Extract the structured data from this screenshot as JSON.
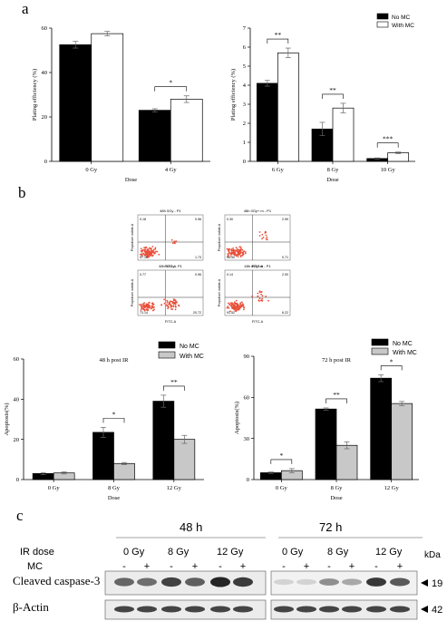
{
  "panel_labels": {
    "a": "a",
    "b": "b",
    "c": "c"
  },
  "legend": {
    "no_mc": "No MC",
    "with_mc": "With MC"
  },
  "colors": {
    "no_mc": "#000000",
    "with_mc_a": "#ffffff",
    "with_mc_b": "#c8c8c8",
    "flow_dots": "#e8503a",
    "blot_band": "#1a1a1a"
  },
  "chart_data": [
    {
      "id": "a1",
      "type": "bar",
      "ylabel": "Plating efficiency (%)",
      "xlabel": "Dose",
      "categories": [
        "0 Gy",
        "4 Gy"
      ],
      "ylim": [
        0,
        60
      ],
      "yticks": [
        0,
        20,
        40,
        60
      ],
      "series": [
        {
          "name": "No MC",
          "values": [
            52.5,
            23.0
          ],
          "errors": [
            1.5,
            0.7
          ]
        },
        {
          "name": "With MC",
          "values": [
            57.5,
            28.0
          ],
          "errors": [
            1.0,
            1.5
          ]
        }
      ],
      "significance": [
        {
          "category": 1,
          "text": "*"
        }
      ]
    },
    {
      "id": "a2",
      "type": "bar",
      "ylabel": "Plating efficiency (%)",
      "xlabel": "Dose",
      "categories": [
        "6 Gy",
        "8 Gy",
        "10 Gy"
      ],
      "ylim": [
        0,
        7
      ],
      "yticks": [
        0,
        1,
        2,
        3,
        4,
        5,
        6,
        7
      ],
      "series": [
        {
          "name": "No MC",
          "values": [
            4.1,
            1.7,
            0.15
          ],
          "errors": [
            0.15,
            0.35,
            0.03
          ]
        },
        {
          "name": "With MC",
          "values": [
            5.7,
            2.8,
            0.45
          ],
          "errors": [
            0.25,
            0.25,
            0.04
          ]
        }
      ],
      "significance": [
        {
          "category": 0,
          "text": "**"
        },
        {
          "category": 1,
          "text": "**"
        },
        {
          "category": 2,
          "text": "***"
        }
      ]
    },
    {
      "id": "b1",
      "type": "bar",
      "title": "48 h post IR",
      "ylabel": "Apoptosis(%)",
      "xlabel": "Dose",
      "categories": [
        "0 Gy",
        "8 Gy",
        "12 Gy"
      ],
      "ylim": [
        0,
        60
      ],
      "yticks": [
        0,
        20,
        40,
        60
      ],
      "series": [
        {
          "name": "No MC",
          "values": [
            3.0,
            23.5,
            39.0
          ],
          "errors": [
            0.5,
            2.5,
            3.0
          ]
        },
        {
          "name": "With MC",
          "values": [
            3.3,
            8.0,
            20.0
          ],
          "errors": [
            0.5,
            0.5,
            2.0
          ]
        }
      ],
      "significance": [
        {
          "category": 1,
          "text": "*"
        },
        {
          "category": 2,
          "text": "**"
        }
      ]
    },
    {
      "id": "b2",
      "type": "bar",
      "title": "72 h post IR",
      "ylabel": "Apoptosis(%)",
      "xlabel": "Dose",
      "categories": [
        "0 Gy",
        "8 Gy",
        "12 Gy"
      ],
      "ylim": [
        0,
        90
      ],
      "yticks": [
        0,
        30,
        60,
        90
      ],
      "series": [
        {
          "name": "No MC",
          "values": [
            5.0,
            51.5,
            74.0
          ],
          "errors": [
            0.5,
            0.8,
            2.5
          ]
        },
        {
          "name": "With MC",
          "values": [
            6.5,
            25.0,
            55.5
          ],
          "errors": [
            1.5,
            2.5,
            1.5
          ]
        }
      ],
      "significance": [
        {
          "category": 0,
          "text": "*"
        },
        {
          "category": 1,
          "text": "**"
        },
        {
          "category": 2,
          "text": "*"
        }
      ]
    }
  ],
  "flow_plots": [
    {
      "title": "48h 0Gy - P1",
      "ylabel": "Propidium iodide-A",
      "xlabel": "FITC-A",
      "q": [
        "0.18",
        "0.96",
        "97.15",
        "1.73"
      ]
    },
    {
      "title": "48h 0Gy+ m - P1",
      "ylabel": "Propidium iodide-A",
      "xlabel": "FITC-A",
      "q": [
        "0.30",
        "2.59",
        "96.40",
        "0.71"
      ]
    },
    {
      "title": "48h 12Gy - P1",
      "ylabel": "Propidium iodide-A",
      "xlabel": "FITC-A",
      "q": [
        "0.77",
        "0.96",
        "73.14",
        "20.72"
      ]
    },
    {
      "title": "48h 8Gy+m - P1",
      "ylabel": "Propidium iodide-A",
      "xlabel": "FITC-A",
      "q": [
        "0.14",
        "2.00",
        "91.52",
        "6.22"
      ]
    }
  ],
  "blot": {
    "time_48": "48 h",
    "time_72": "72 h",
    "ir_dose_label": "IR dose",
    "mc_label": "MC",
    "doses": [
      "0 Gy",
      "8 Gy",
      "12 Gy"
    ],
    "mc_signs": [
      "-",
      "+"
    ],
    "kda_label": "kDa",
    "rows": [
      {
        "label": "Cleaved caspase-3",
        "kda": "19"
      },
      {
        "label": "β-Actin",
        "kda": "42"
      }
    ]
  }
}
